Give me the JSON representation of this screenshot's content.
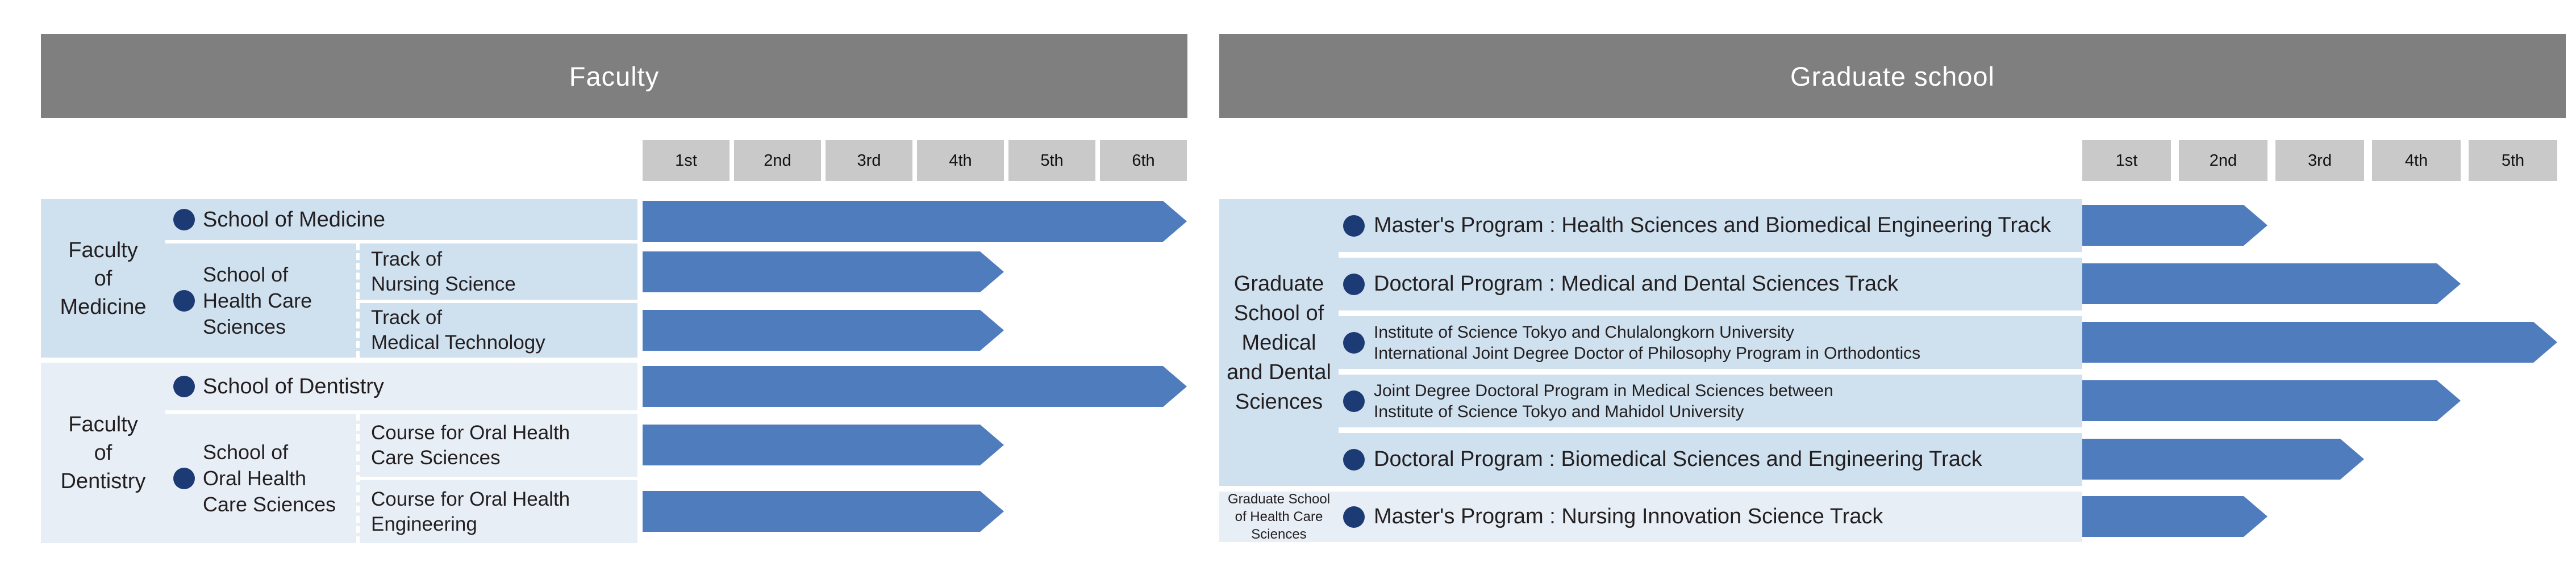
{
  "palette": {
    "bar": "#4f7cbd",
    "header": "#7f7f7f",
    "year_cell": "#c9c9c9",
    "block_dark": "#cfe0ef",
    "block_light": "#e8eef6",
    "bullet": "#1c3a73",
    "text": "#231f20"
  },
  "left": {
    "header": "Faculty",
    "years": [
      "1st",
      "2nd",
      "3rd",
      "4th",
      "5th",
      "6th"
    ],
    "medicine": {
      "group": [
        "Faculty",
        "of",
        "Medicine"
      ],
      "school_of_medicine": {
        "label": "School of Medicine",
        "years": 6
      },
      "health_care": {
        "lines": [
          "School of",
          "Health Care",
          "Sciences"
        ]
      },
      "nursing": {
        "lines": [
          "Track of",
          "Nursing Science"
        ],
        "years": 4
      },
      "medical_technology": {
        "lines": [
          "Track of",
          "Medical Technology"
        ],
        "years": 4
      }
    },
    "dentistry": {
      "group": [
        "Faculty",
        "of",
        "Dentistry"
      ],
      "school_of_dentistry": {
        "label": "School of Dentistry",
        "years": 6
      },
      "oral_health": {
        "lines": [
          "School of",
          "Oral Health",
          "Care Sciences"
        ]
      },
      "course_care": {
        "lines": [
          "Course for Oral Health",
          "Care Sciences"
        ],
        "years": 4
      },
      "course_engineering": {
        "lines": [
          "Course for Oral Health",
          "Engineering"
        ],
        "years": 4
      }
    }
  },
  "right": {
    "header": "Graduate school",
    "years": [
      "1st",
      "2nd",
      "3rd",
      "4th",
      "5th"
    ],
    "medical_dental": {
      "label": [
        "Graduate",
        "School of",
        "Medical",
        "and Dental",
        "Sciences"
      ],
      "programs": [
        {
          "lines": [
            "Master's Program : Health Sciences and Biomedical Engineering Track"
          ],
          "years": 2
        },
        {
          "lines": [
            "Doctoral Program : Medical and Dental Sciences Track"
          ],
          "years": 4
        },
        {
          "lines": [
            "Institute of Science Tokyo and Chulalongkorn University",
            "International Joint Degree Doctor of Philosophy Program in Orthodontics"
          ],
          "years": 5
        },
        {
          "lines": [
            "Joint Degree Doctoral Program in Medical Sciences between",
            "Institute of Science Tokyo and Mahidol University"
          ],
          "years": 4
        },
        {
          "lines": [
            "Doctoral Program : Biomedical Sciences and Engineering Track"
          ],
          "years": 3
        }
      ]
    },
    "health_care": {
      "label": [
        "Graduate School",
        "of Health Care",
        "Sciences"
      ],
      "programs": [
        {
          "lines": [
            "Master's Program : Nursing Innovation Science Track"
          ],
          "years": 2
        }
      ]
    }
  }
}
